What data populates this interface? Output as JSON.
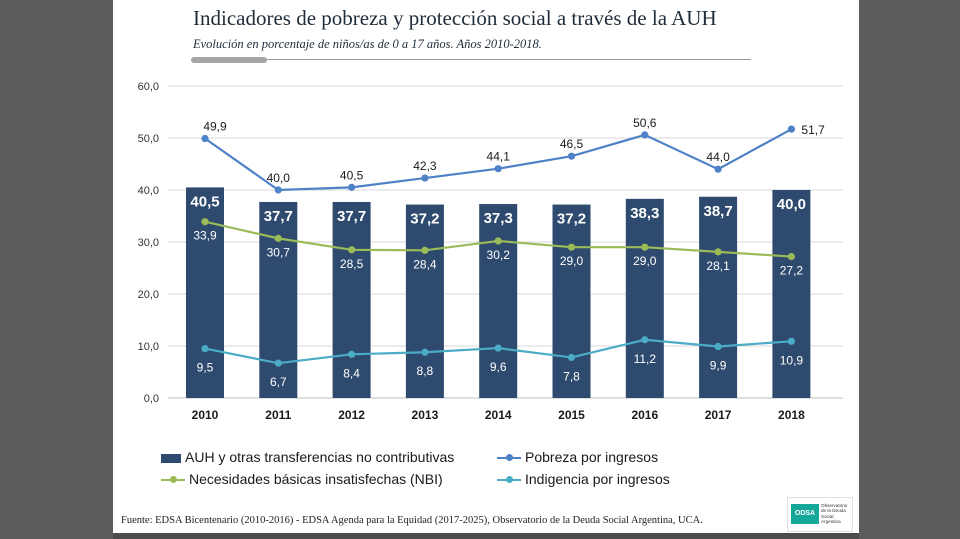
{
  "header": {
    "title": "Indicadores de pobreza y protección social a través de la AUH",
    "subtitle": "Evolución en porcentaje de niños/as de 0 a 17 años. Años  2010-2018."
  },
  "chart_data": {
    "type": "bar+line",
    "categories": [
      "2010",
      "2011",
      "2012",
      "2013",
      "2014",
      "2015",
      "2016",
      "2017",
      "2018"
    ],
    "ylim": [
      0,
      60
    ],
    "yticks": [
      "0,0",
      "10,0",
      "20,0",
      "30,0",
      "40,0",
      "50,0",
      "60,0"
    ],
    "grid": true,
    "series": [
      {
        "name": "AUH y otras transferencias no contributivas",
        "kind": "bar",
        "color": "#2e4a6e",
        "values": [
          40.5,
          37.7,
          37.7,
          37.2,
          37.3,
          37.2,
          38.3,
          38.7,
          40.0
        ],
        "labels": [
          "40,5",
          "37,7",
          "37,7",
          "37,2",
          "37,3",
          "37,2",
          "38,3",
          "38,7",
          "40,0"
        ]
      },
      {
        "name": "Pobreza por ingresos",
        "kind": "line",
        "color": "#4f81c7",
        "values": [
          49.9,
          40.0,
          40.5,
          42.3,
          44.1,
          46.5,
          50.6,
          44.0,
          51.7
        ],
        "labels": [
          "49,9",
          "40,0",
          "40,5",
          "42,3",
          "44,1",
          "46,5",
          "50,6",
          "44,0",
          "51,7"
        ]
      },
      {
        "name": "Necesidades básicas insatisfechas (NBI)",
        "kind": "line",
        "color": "#9bbb59",
        "values": [
          33.9,
          30.7,
          28.5,
          28.4,
          30.2,
          29.0,
          29.0,
          28.1,
          27.2
        ],
        "labels": [
          "33,9",
          "30,7",
          "28,5",
          "28,4",
          "30,2",
          "29,0",
          "29,0",
          "28,1",
          "27,2"
        ]
      },
      {
        "name": "Indigencia por ingresos",
        "kind": "line",
        "color": "#4bacc6",
        "values": [
          9.5,
          6.7,
          8.4,
          8.8,
          9.6,
          7.8,
          11.2,
          9.9,
          10.9
        ],
        "labels": [
          "9,5",
          "6,7",
          "8,4",
          "8,8",
          "9,6",
          "7,8",
          "11,2",
          "9,9",
          "10,9"
        ]
      }
    ]
  },
  "legend": {
    "auh": "AUH y otras transferencias no contributivas",
    "pobreza": "Pobreza por ingresos",
    "nbi": "Necesidades básicas insatisfechas (NBI)",
    "indigencia": "Indigencia por ingresos"
  },
  "footer": {
    "source": "Fuente: EDSA Bicentenario (2010-2016) - EDSA Agenda para la Equidad (2017-2025), Observatorio de la Deuda Social Argentina, UCA.",
    "logo_abbr": "ODSA",
    "logo_text": "Observatorio de la Deuda Social Argentina"
  }
}
